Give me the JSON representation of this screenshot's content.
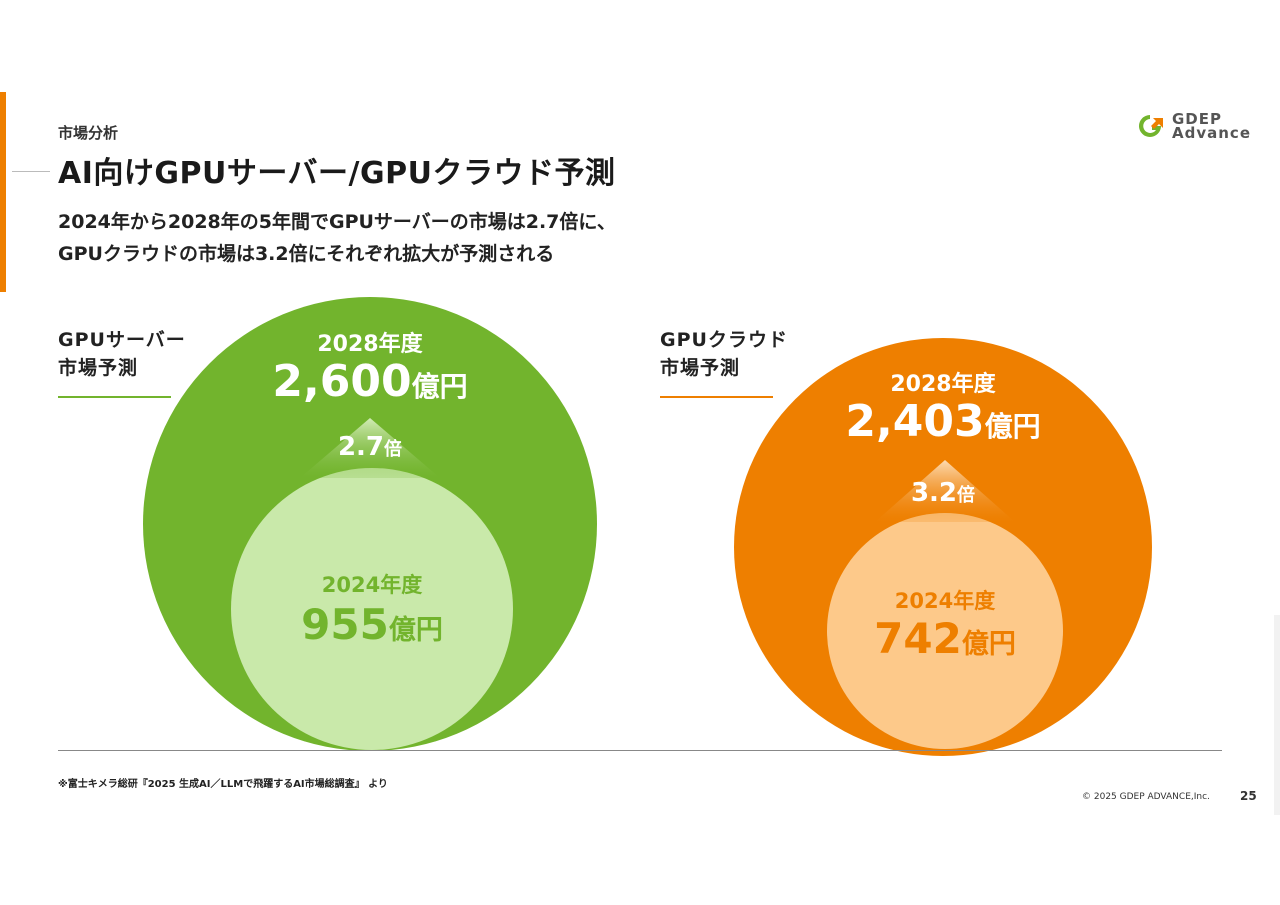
{
  "header": {
    "section_label": "市場分析",
    "title": "AI向けGPUサーバー/GPUクラウド予測",
    "subtitle_line1": "2024年から2028年の5年間でGPUサーバーの市場は2.7倍に、",
    "subtitle_line2": "GPUクラウドの市場は3.2倍にそれぞれ拡大が予測される"
  },
  "logo": {
    "line1": "GDEP",
    "line2": "Advance"
  },
  "gpu_server": {
    "label_line1": "GPUサーバー",
    "label_line2": "市場予測",
    "year_2028": "2028年度",
    "value_2028": "2,600",
    "unit_2028": "億円",
    "multiplier": "2.7",
    "multiplier_unit": "倍",
    "year_2024": "2024年度",
    "value_2024": "955",
    "unit_2024": "億円",
    "color_outer": "#72b42d",
    "color_inner": "#c9e9aa"
  },
  "gpu_cloud": {
    "label_line1": "GPUクラウド",
    "label_line2": "市場予測",
    "year_2028": "2028年度",
    "value_2028": "2,403",
    "unit_2028": "億円",
    "multiplier": "3.2",
    "multiplier_unit": "倍",
    "year_2024": "2024年度",
    "value_2024": "742",
    "unit_2024": "億円",
    "color_outer": "#ee7f00",
    "color_inner": "#fdc98a"
  },
  "footer": {
    "footnote": "※富士キメラ総研『2025 生成AI／LLMで飛躍するAI市場総調査』 より",
    "copyright": "© 2025 GDEP ADVANCE,Inc.",
    "page_number": "25"
  }
}
